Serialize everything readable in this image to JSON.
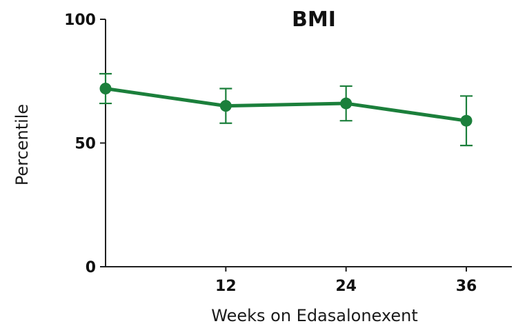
{
  "chart_data": {
    "type": "line",
    "title": "BMI",
    "xlabel": "Weeks on Edasalonexent",
    "ylabel": "Percentile",
    "xlim": [
      0,
      40
    ],
    "ylim": [
      0,
      100
    ],
    "x_ticks": [
      {
        "value": 12,
        "label": "12"
      },
      {
        "value": 24,
        "label": "24"
      },
      {
        "value": 36,
        "label": "36"
      }
    ],
    "y_ticks": [
      {
        "value": 0,
        "label": "0"
      },
      {
        "value": 50,
        "label": "50"
      },
      {
        "value": 100,
        "label": "100"
      }
    ],
    "series": [
      {
        "color": "#1b7f3b",
        "points": [
          {
            "x": 0,
            "y": 72,
            "err_low": 66,
            "err_high": 78
          },
          {
            "x": 12,
            "y": 65,
            "err_low": 58,
            "err_high": 72
          },
          {
            "x": 24,
            "y": 66,
            "err_low": 59,
            "err_high": 73
          },
          {
            "x": 36,
            "y": 59,
            "err_low": 49,
            "err_high": 69
          }
        ]
      }
    ],
    "grid": false,
    "legend": "none"
  }
}
